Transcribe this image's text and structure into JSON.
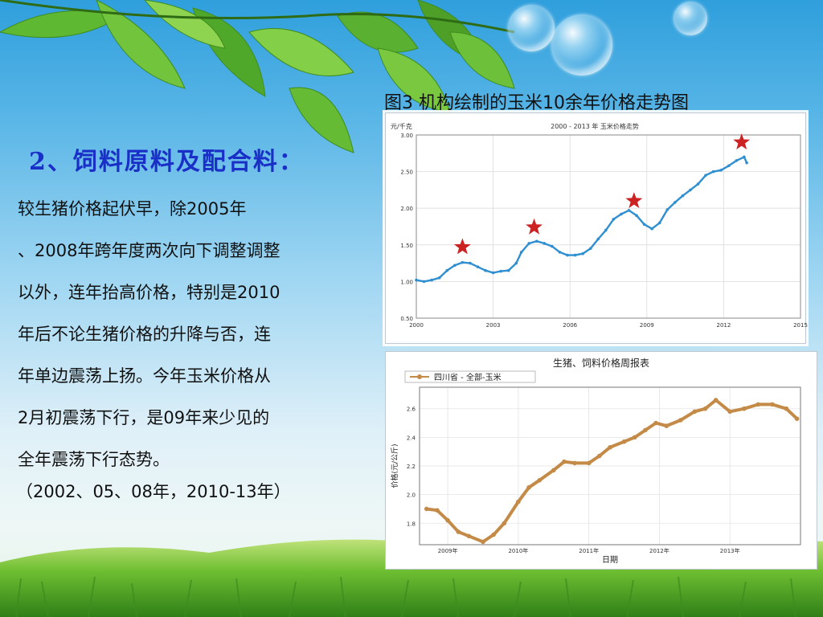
{
  "slide": {
    "figure_caption": "图3  机构绘制的玉米10余年价格走势图",
    "heading": "2、饲料原料及配合料：",
    "body_lines": [
      "    较生猪价格起伏早，除2005年",
      "、2008年跨年度两次向下调整调整",
      "以外，连年抬高价格，特别是2010",
      "年后不论生猪价格的升降与否，连",
      "年单边震荡上扬。今年玉米价格从",
      "2月初震荡下行，是09年来少见的",
      "全年震荡下行态势。"
    ],
    "note": "（2002、05、08年，2010-13年）"
  },
  "chart_data": [
    {
      "type": "line",
      "title": "2000 - 2013 年 玉米价格走势",
      "ylabel": "元/千克",
      "xlim": [
        2000,
        2015
      ],
      "ylim": [
        0.5,
        3.0
      ],
      "xticks": [
        "2000",
        "2003",
        "2006",
        "2009",
        "2012",
        "2015"
      ],
      "yticks": [
        "0.50",
        "1.00",
        "1.50",
        "2.00",
        "2.50",
        "3.00"
      ],
      "grid": true,
      "series_color": "#2f8fd0",
      "marker_color": "#cc2222",
      "x": [
        2000.0,
        2000.3,
        2000.6,
        2000.9,
        2001.2,
        2001.5,
        2001.8,
        2002.1,
        2002.4,
        2002.7,
        2003.0,
        2003.3,
        2003.6,
        2003.9,
        2004.1,
        2004.4,
        2004.7,
        2005.0,
        2005.3,
        2005.6,
        2005.9,
        2006.2,
        2006.5,
        2006.8,
        2007.1,
        2007.4,
        2007.7,
        2008.0,
        2008.3,
        2008.6,
        2008.9,
        2009.2,
        2009.5,
        2009.8,
        2010.1,
        2010.4,
        2010.7,
        2011.0,
        2011.3,
        2011.6,
        2011.9,
        2012.2,
        2012.5,
        2012.8,
        2012.9
      ],
      "y": [
        1.02,
        1.0,
        1.02,
        1.05,
        1.15,
        1.22,
        1.26,
        1.25,
        1.2,
        1.15,
        1.12,
        1.14,
        1.15,
        1.25,
        1.4,
        1.52,
        1.55,
        1.52,
        1.48,
        1.4,
        1.36,
        1.36,
        1.38,
        1.45,
        1.58,
        1.7,
        1.85,
        1.92,
        1.97,
        1.9,
        1.78,
        1.72,
        1.8,
        1.98,
        2.08,
        2.17,
        2.25,
        2.33,
        2.45,
        2.5,
        2.52,
        2.58,
        2.65,
        2.7,
        2.62
      ],
      "markers": [
        {
          "x": 2001.8,
          "y": 1.47
        },
        {
          "x": 2004.6,
          "y": 1.74
        },
        {
          "x": 2008.5,
          "y": 2.1
        },
        {
          "x": 2012.7,
          "y": 2.9
        }
      ]
    },
    {
      "type": "line",
      "title": "生猪、饲料价格周报表",
      "legend": "四川省 - 全部-玉米",
      "legend_position": "top-left",
      "xlabel": "日期",
      "ylabel": "价格(元/公斤)",
      "xlim": [
        2008.6,
        2014.0
      ],
      "ylim": [
        1.65,
        2.75
      ],
      "xticks": [
        "2009年",
        "2010年",
        "2011年",
        "2012年",
        "2013年"
      ],
      "xtick_values": [
        2009,
        2010,
        2011,
        2012,
        2013
      ],
      "yticks": [
        "1.8",
        "2.0",
        "2.2",
        "2.4",
        "2.6"
      ],
      "grid": true,
      "series_color": "#c48a48",
      "x": [
        2008.7,
        2008.85,
        2009.0,
        2009.15,
        2009.3,
        2009.5,
        2009.65,
        2009.8,
        2010.0,
        2010.15,
        2010.3,
        2010.5,
        2010.65,
        2010.8,
        2011.0,
        2011.15,
        2011.3,
        2011.5,
        2011.65,
        2011.8,
        2011.95,
        2012.1,
        2012.3,
        2012.5,
        2012.65,
        2012.8,
        2013.0,
        2013.2,
        2013.4,
        2013.6,
        2013.8,
        2013.95
      ],
      "y": [
        1.9,
        1.89,
        1.82,
        1.74,
        1.71,
        1.67,
        1.72,
        1.8,
        1.95,
        2.05,
        2.1,
        2.17,
        2.23,
        2.22,
        2.22,
        2.27,
        2.33,
        2.37,
        2.4,
        2.45,
        2.5,
        2.48,
        2.52,
        2.58,
        2.6,
        2.66,
        2.58,
        2.6,
        2.63,
        2.63,
        2.6,
        2.53
      ]
    }
  ]
}
